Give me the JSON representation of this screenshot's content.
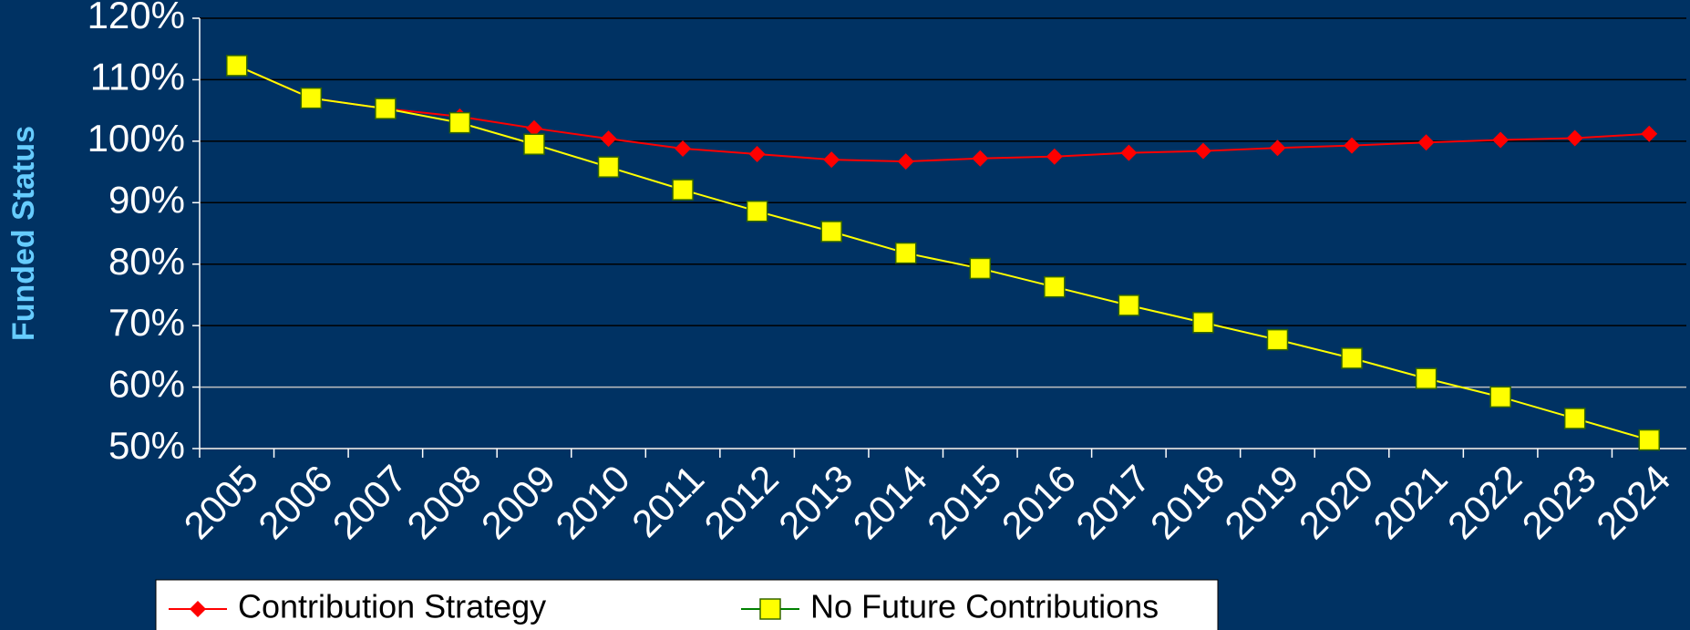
{
  "chart_data": {
    "type": "line",
    "y_axis_label": "Funded Status",
    "categories": [
      "2005",
      "2006",
      "2007",
      "2008",
      "2009",
      "2010",
      "2011",
      "2012",
      "2013",
      "2014",
      "2015",
      "2016",
      "2017",
      "2018",
      "2019",
      "2020",
      "2021",
      "2022",
      "2023",
      "2024"
    ],
    "series": [
      {
        "name": "Contribution Strategy",
        "color": "#ff0000",
        "marker": "diamond",
        "values": [
          112.3,
          107,
          105.3,
          104,
          102.1,
          100.4,
          98.8,
          97.9,
          97,
          96.7,
          97.2,
          97.5,
          98.1,
          98.4,
          98.9,
          99.3,
          99.8,
          100.2,
          100.5,
          101.2
        ]
      },
      {
        "name": "No Future Contributions",
        "color": "#ffff00",
        "marker": "square",
        "values": [
          112.3,
          107,
          105.3,
          103,
          99.5,
          95.8,
          92.1,
          88.6,
          85.3,
          81.8,
          79.3,
          76.3,
          73.3,
          70.5,
          67.7,
          64.7,
          61.4,
          58.4,
          54.9,
          51.4
        ]
      }
    ],
    "ylim": [
      50,
      120
    ],
    "yticks": [
      {
        "value": 50,
        "label": "50%"
      },
      {
        "value": 60,
        "label": "60%"
      },
      {
        "value": 70,
        "label": "70%"
      },
      {
        "value": 80,
        "label": "80%"
      },
      {
        "value": 90,
        "label": "90%"
      },
      {
        "value": 100,
        "label": "100%"
      },
      {
        "value": 110,
        "label": "110%"
      },
      {
        "value": 120,
        "label": "120%"
      }
    ],
    "grid": true,
    "legend": "bottom"
  }
}
